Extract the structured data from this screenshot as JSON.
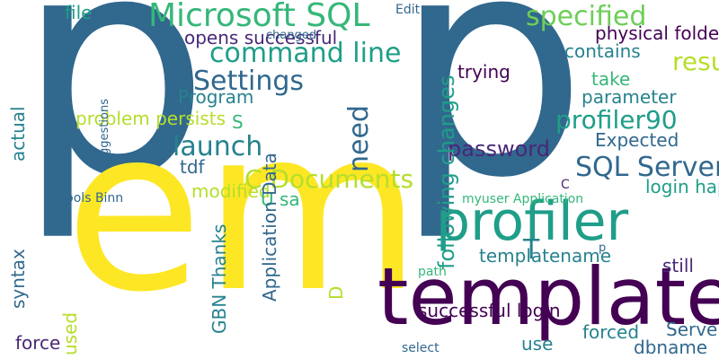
{
  "colors": {
    "dark_purple": "#440154",
    "indigo": "#482878",
    "blue": "#31688e",
    "teal": "#26828e",
    "green_teal": "#1f9e89",
    "green": "#35b779",
    "light_green": "#6ece58",
    "yellow_green": "#b5de2b",
    "yellow": "#fde725"
  },
  "words": [
    "p",
    "p",
    "em",
    "template",
    "profiler",
    "Microsoft SQL",
    "specified",
    "command line",
    "Settings",
    "launch",
    "C Documents",
    "profiler90",
    "SQL Server",
    "result",
    "file",
    "Edit",
    "opens successful",
    "changed",
    "physical folder",
    "contains",
    "trying",
    "take",
    "Program",
    "parameter",
    "actual",
    "suggestions",
    "problem persists",
    "S",
    "Expected",
    "password",
    "tdf",
    "modified",
    "C",
    "login happens",
    "U sa",
    "Tools Binn",
    "myuser Application",
    "GBN Thanks",
    "templatename",
    "syntax",
    "T",
    "p",
    "still",
    "Application Data",
    "D",
    "path",
    "used",
    "successful login",
    "Server",
    "forced",
    "use",
    "dbname",
    "force",
    "select",
    "need",
    "following changes"
  ]
}
